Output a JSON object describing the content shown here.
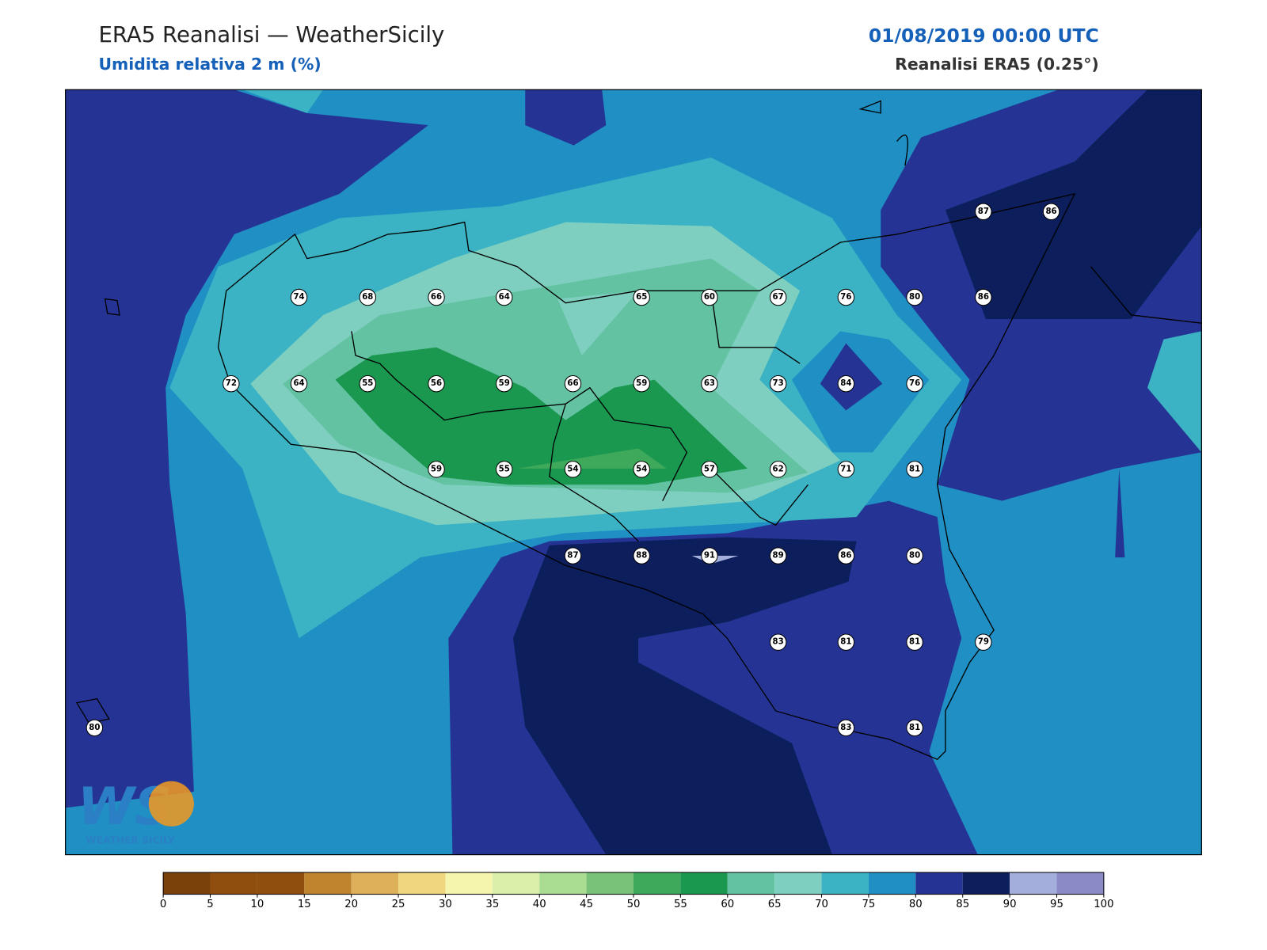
{
  "header": {
    "title": "ERA5 Reanalisi — WeatherSicily",
    "subtitle": "Umidita relativa 2 m (%)",
    "datetime": "01/08/2019 00:00 UTC",
    "source": "Reanalisi ERA5 (0.25°)"
  },
  "map": {
    "station_values": [
      87,
      86,
      74,
      68,
      66,
      64,
      65,
      60,
      67,
      76,
      80,
      86,
      72,
      64,
      55,
      56,
      59,
      66,
      59,
      63,
      73,
      84,
      76,
      59,
      55,
      54,
      54,
      57,
      62,
      71,
      81,
      87,
      88,
      91,
      89,
      86,
      80,
      83,
      81,
      81,
      79,
      80,
      83,
      81
    ]
  },
  "colorbar": {
    "ticks": [
      0,
      5,
      10,
      15,
      20,
      25,
      30,
      35,
      40,
      45,
      50,
      55,
      60,
      65,
      70,
      75,
      80,
      85,
      90,
      95,
      100
    ],
    "colors": [
      "#7b410b",
      "#8f4e0e",
      "#8f4e0e",
      "#c0832e",
      "#dfb05a",
      "#f0d77f",
      "#f6f5ae",
      "#d9efaa",
      "#aadc92",
      "#78c27a",
      "#3ea85b",
      "#1a9850",
      "#63c2a2",
      "#7ecfc0",
      "#3bb3c4",
      "#1f8fc4",
      "#253494",
      "#0c1e5b",
      "#a3aedc",
      "#8c8ac6"
    ]
  },
  "logo": {
    "mark": "WS",
    "text": "WEATHER SICILY"
  }
}
